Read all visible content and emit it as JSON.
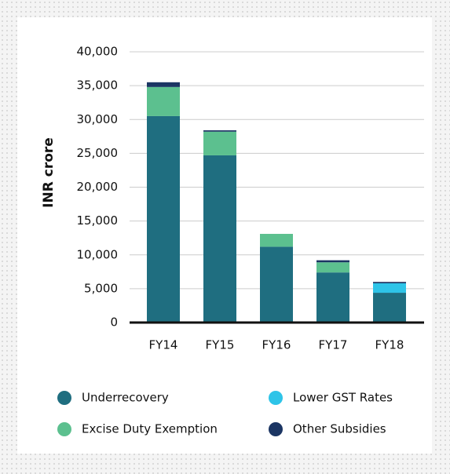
{
  "chart_data": {
    "type": "stacked-bar",
    "ylabel": "INR crore",
    "categories": [
      "FY14",
      "FY15",
      "FY16",
      "FY17",
      "FY18"
    ],
    "series": [
      {
        "name": "Underrecovery",
        "color": "#1f6e80",
        "values": [
          30500,
          24700,
          11200,
          7400,
          4400
        ]
      },
      {
        "name": "Excise Duty Exemption",
        "color": "#5cc08f",
        "values": [
          4300,
          3500,
          1900,
          1500,
          0
        ]
      },
      {
        "name": "Lower GST Rates",
        "color": "#2ec4e8",
        "values": [
          0,
          0,
          0,
          0,
          1400
        ]
      },
      {
        "name": "Other Subsidies",
        "color": "#1b3563",
        "values": [
          700,
          200,
          0,
          300,
          200
        ]
      }
    ],
    "ylim": [
      0,
      40000
    ],
    "yticks": [
      0,
      {
        "value": 5000,
        "label": "5,000"
      },
      {
        "value": 10000,
        "label": "10,000"
      },
      {
        "value": 15000,
        "label": "15,000"
      },
      {
        "value": 20000,
        "label": "20,000"
      },
      {
        "value": 25000,
        "label": "25,000"
      },
      {
        "value": 30000,
        "label": "30,000"
      },
      {
        "value": 35000,
        "label": "35,000"
      },
      {
        "value": 40000,
        "label": "40,000"
      }
    ],
    "grid": true
  }
}
